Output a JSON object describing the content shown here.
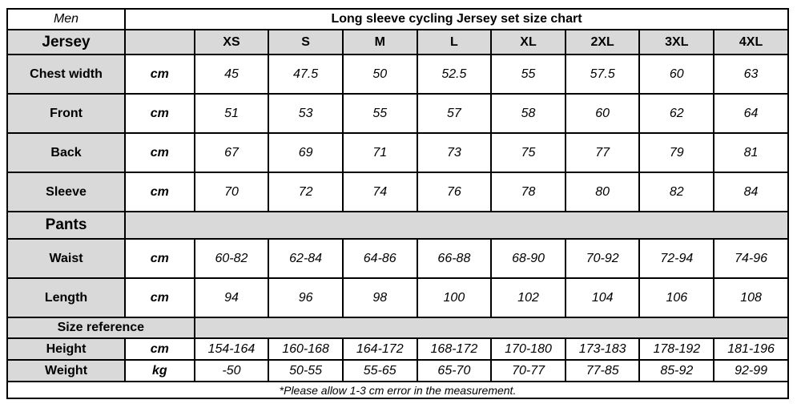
{
  "chart_data": {
    "type": "table",
    "title": "Long sleeve cycling Jersey set size chart",
    "corner_label": "Men",
    "columns": [
      "XS",
      "S",
      "M",
      "L",
      "XL",
      "2XL",
      "3XL",
      "4XL"
    ],
    "sections": [
      {
        "label": "Jersey",
        "rows": [
          {
            "label": "Chest width",
            "unit": "cm",
            "values": [
              "45",
              "47.5",
              "50",
              "52.5",
              "55",
              "57.5",
              "60",
              "63"
            ]
          },
          {
            "label": "Front",
            "unit": "cm",
            "values": [
              "51",
              "53",
              "55",
              "57",
              "58",
              "60",
              "62",
              "64"
            ]
          },
          {
            "label": "Back",
            "unit": "cm",
            "values": [
              "67",
              "69",
              "71",
              "73",
              "75",
              "77",
              "79",
              "81"
            ]
          },
          {
            "label": "Sleeve",
            "unit": "cm",
            "values": [
              "70",
              "72",
              "74",
              "76",
              "78",
              "80",
              "82",
              "84"
            ]
          }
        ]
      },
      {
        "label": "Pants",
        "rows": [
          {
            "label": "Waist",
            "unit": "cm",
            "values": [
              "60-82",
              "62-84",
              "64-86",
              "66-88",
              "68-90",
              "70-92",
              "72-94",
              "74-96"
            ]
          },
          {
            "label": "Length",
            "unit": "cm",
            "values": [
              "94",
              "96",
              "98",
              "100",
              "102",
              "104",
              "106",
              "108"
            ]
          }
        ]
      },
      {
        "label": "Size reference",
        "rows": [
          {
            "label": "Height",
            "unit": "cm",
            "values": [
              "154-164",
              "160-168",
              "164-172",
              "168-172",
              "170-180",
              "173-183",
              "178-192",
              "181-196"
            ]
          },
          {
            "label": "Weight",
            "unit": "kg",
            "values": [
              "-50",
              "50-55",
              "55-65",
              "65-70",
              "70-77",
              "77-85",
              "85-92",
              "92-99"
            ]
          }
        ]
      }
    ],
    "footnote": "*Please allow 1-3 cm error in the measurement.",
    "colors": {
      "header_bg": "#d9d9d9",
      "border": "#000000",
      "background": "#ffffff"
    }
  }
}
